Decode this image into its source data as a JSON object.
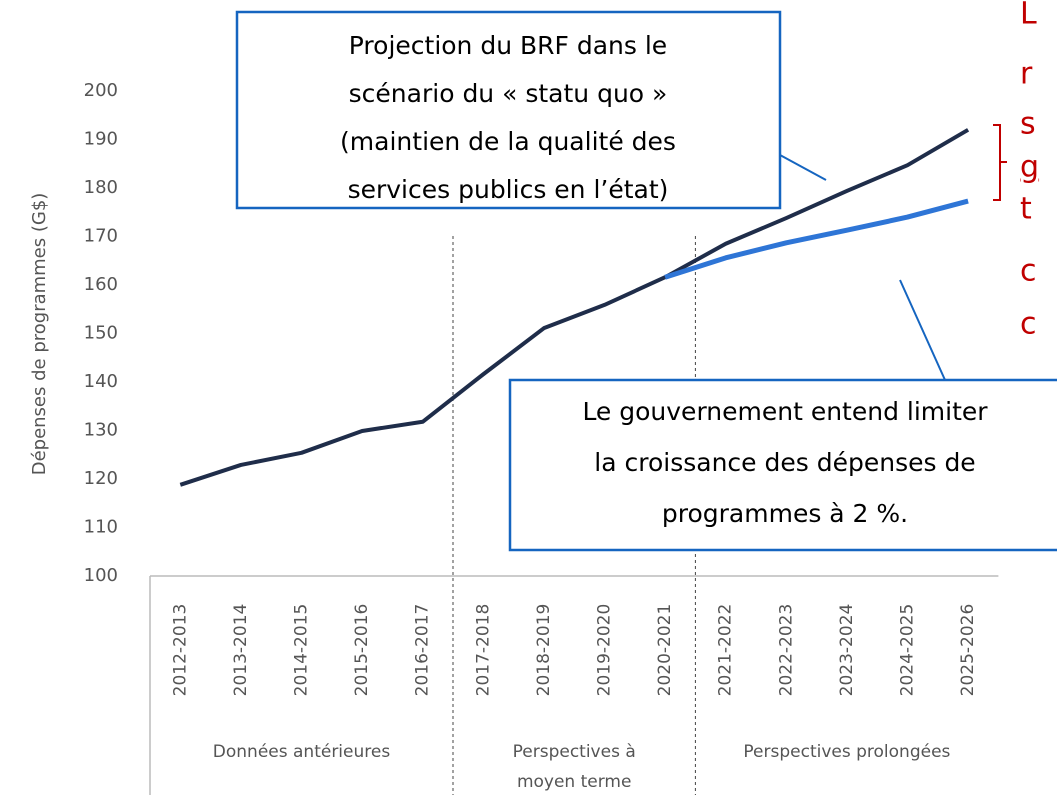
{
  "chart_data": {
    "type": "line",
    "y_label": "Dépenses de programmes (G$)",
    "categories": [
      "2012-2013",
      "2013-2014",
      "2014-2015",
      "2015-2016",
      "2016-2017",
      "2017-2018",
      "2018-2019",
      "2019-2020",
      "2020-2021",
      "2021-2022",
      "2022-2023",
      "2023-2024",
      "2024-2025",
      "2025-2026"
    ],
    "series": [
      {
        "color": "#1f2d4a",
        "values": [
          118.8,
          122.9,
          125.4,
          129.9,
          131.8,
          141.6,
          151.1,
          155.9,
          161.6,
          168.5,
          173.8,
          179.4,
          184.7,
          192
        ]
      },
      {
        "color": "#2e75d6",
        "values": [
          null,
          null,
          null,
          null,
          null,
          null,
          null,
          null,
          161.6,
          165.6,
          168.7,
          171.3,
          174,
          177.3
        ]
      }
    ],
    "ylim": [
      100,
      200
    ],
    "yticks": [
      100,
      110,
      120,
      130,
      140,
      150,
      160,
      170,
      180,
      190,
      200
    ],
    "groups": [
      {
        "lines": [
          "Données antérieures"
        ]
      },
      {
        "lines": [
          "Perspectives à",
          "moyen terme"
        ]
      },
      {
        "lines": [
          "Perspectives prolongées"
        ]
      }
    ],
    "annotations": [
      {
        "lines": [
          "Projection du BRF dans le",
          "scénario du « statu quo »",
          "(maintien de la qualité des",
          "services publics en l’état)"
        ]
      },
      {
        "lines": [
          "Le gouvernement entend limiter",
          "la croissance des dépenses de",
          "programmes à 2 %."
        ]
      }
    ],
    "side_note": [
      "L",
      "r",
      "s",
      "g",
      "t",
      "c",
      "c"
    ]
  }
}
